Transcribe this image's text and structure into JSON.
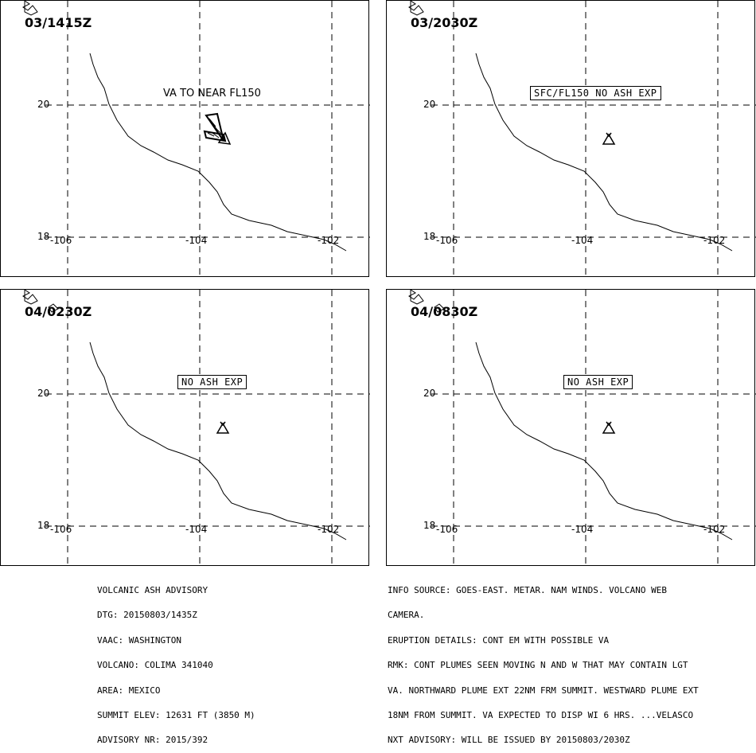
{
  "panels": [
    {
      "time": "03/1415Z",
      "label": "VA TO NEAR FL150",
      "label_style": "plain",
      "plume": true
    },
    {
      "time": "03/2030Z",
      "label": "SFC/FL150 NO ASH EXP",
      "label_style": "boxed",
      "plume": false
    },
    {
      "time": "04/0230Z",
      "label": "NO ASH EXP",
      "label_style": "boxed",
      "plume": false
    },
    {
      "time": "04/0830Z",
      "label": "NO ASH EXP",
      "label_style": "boxed",
      "plume": false
    }
  ],
  "axes": {
    "lat_labels": [
      "20",
      "18"
    ],
    "lon_labels": [
      "-106",
      "-104",
      "-102"
    ]
  },
  "advisory_left": [
    "VOLCANIC ASH ADVISORY",
    "DTG: 20150803/1435Z",
    "VAAC: WASHINGTON",
    "VOLCANO: COLIMA 341040",
    "AREA: MEXICO",
    "SUMMIT ELEV: 12631 FT (3850 M)",
    "ADVISORY NR: 2015/392"
  ],
  "advisory_right": [
    "INFO SOURCE: GOES-EAST. METAR. NAM WINDS. VOLCANO WEB",
    "CAMERA.",
    "ERUPTION DETAILS: CONT EM WITH POSSIBLE VA",
    "RMK: CONT PLUMES SEEN MOVING N AND W THAT MAY CONTAIN LGT",
    "VA. NORTHWARD PLUME EXT 22NM FRM SUMMIT. WESTWARD PLUME EXT",
    "18NM FROM SUMMIT. VA EXPECTED TO DISP WI 6 HRS. ...VELASCO",
    "NXT ADVISORY: WILL BE ISSUED BY 20150803/2030Z"
  ]
}
